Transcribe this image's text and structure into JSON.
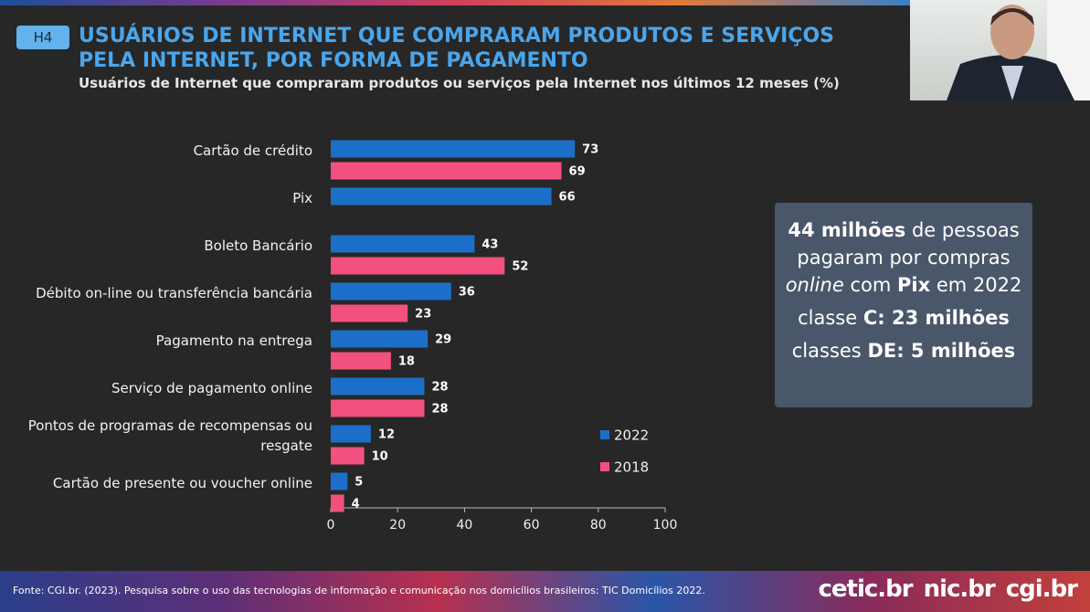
{
  "badge": "H4",
  "chart_data": {
    "type": "bar",
    "orientation": "horizontal",
    "title": "USUÁRIOS DE INTERNET QUE COMPRARAM PRODUTOS E SERVIÇOS PELA INTERNET, POR FORMA DE PAGAMENTO",
    "subtitle": "Usuários de Internet que compraram produtos ou serviços pela Internet nos últimos 12 meses (%)",
    "categories": [
      "Cartão de crédito",
      "Pix",
      "Boleto Bancário",
      "Débito on-line ou transferência bancária",
      "Pagamento na entrega",
      "Serviço de pagamento online",
      "Pontos de programas de recompensas ou resgate",
      "Cartão de presente ou voucher online"
    ],
    "series": [
      {
        "name": "2022",
        "color": "#1c6fc8",
        "values": [
          73,
          66,
          43,
          36,
          29,
          28,
          12,
          5
        ]
      },
      {
        "name": "2018",
        "color": "#f2507e",
        "values": [
          69,
          null,
          52,
          23,
          18,
          28,
          10,
          4
        ]
      }
    ],
    "xlim": [
      0,
      100
    ],
    "xticks": [
      0,
      20,
      40,
      60,
      80,
      100
    ]
  },
  "callout": {
    "headline": [
      "44 milhões",
      "de pessoas pagaram por compras",
      "online",
      "com",
      "Pix",
      "em 2022"
    ],
    "line1": [
      "classe",
      "C: 23 milhões"
    ],
    "line2": [
      "classes",
      "DE: 5 milhões"
    ]
  },
  "footer": {
    "source": "Fonte: CGI.br. (2023). Pesquisa sobre o uso das tecnologias de informação e comunicação nos domicílios brasileiros: TIC Domicílios 2022.",
    "logos": [
      "cetic.br",
      "nic.br",
      "cgi.br"
    ]
  }
}
